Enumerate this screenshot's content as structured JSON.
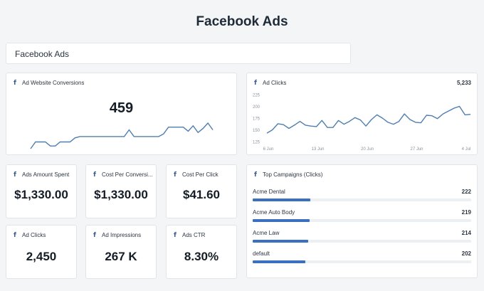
{
  "header": {
    "title": "Facebook Ads"
  },
  "section": {
    "label": "Facebook Ads"
  },
  "colors": {
    "facebook_blue": "#3b5998",
    "line_blue": "#4f7eb0",
    "bar_blue": "#3a6fc4"
  },
  "icons": {
    "card_icon": "facebook-icon"
  },
  "cards": {
    "conversions": {
      "title": "Ad Website Conversions",
      "value": "459"
    },
    "clicks_chart": {
      "title": "Ad Clicks",
      "total": "5,233"
    },
    "amount_spent": {
      "title": "Ads Amount Spent",
      "value": "$1,330.00"
    },
    "cost_per_conv": {
      "title": "Cost Per Conversi...",
      "value": "$1,330.00"
    },
    "cost_per_click": {
      "title": "Cost Per Click",
      "value": "$41.60"
    },
    "ad_clicks": {
      "title": "Ad Clicks",
      "value": "2,450"
    },
    "impressions": {
      "title": "Ad Impressions",
      "value": "267 K"
    },
    "ctr": {
      "title": "Ads CTR",
      "value": "8.30%"
    },
    "campaigns": {
      "title": "Top Campaigns (Clicks)",
      "max": 222,
      "items": [
        {
          "name": "Acme Dental",
          "value": 222
        },
        {
          "name": "Acme Auto Body",
          "value": 219
        },
        {
          "name": "Acme Law",
          "value": 214
        },
        {
          "name": "default",
          "value": 202
        }
      ]
    }
  },
  "chart_data": [
    {
      "type": "line",
      "title": "Ad Website Conversions",
      "values": [
        5,
        10,
        10,
        10,
        7,
        7,
        10,
        10,
        10,
        13,
        14,
        14,
        14,
        14,
        14,
        14,
        14,
        14,
        14,
        14,
        19,
        14,
        14,
        14,
        14,
        14,
        14,
        16,
        21,
        21,
        21,
        21,
        18,
        22,
        17,
        20,
        24,
        19
      ]
    },
    {
      "type": "line",
      "title": "Ad Clicks",
      "x_ticks": [
        "6 Jun",
        "13 Jun",
        "20 Jun",
        "27 Jun",
        "4 Jul"
      ],
      "y_ticks": [
        125,
        150,
        175,
        200,
        225
      ],
      "ylim": [
        125,
        225
      ],
      "values": [
        143,
        150,
        163,
        161,
        153,
        160,
        168,
        160,
        158,
        157,
        170,
        155,
        155,
        170,
        162,
        168,
        176,
        171,
        158,
        172,
        182,
        175,
        166,
        162,
        168,
        184,
        172,
        166,
        165,
        181,
        180,
        174,
        184,
        190,
        196,
        200,
        182,
        183
      ]
    }
  ]
}
